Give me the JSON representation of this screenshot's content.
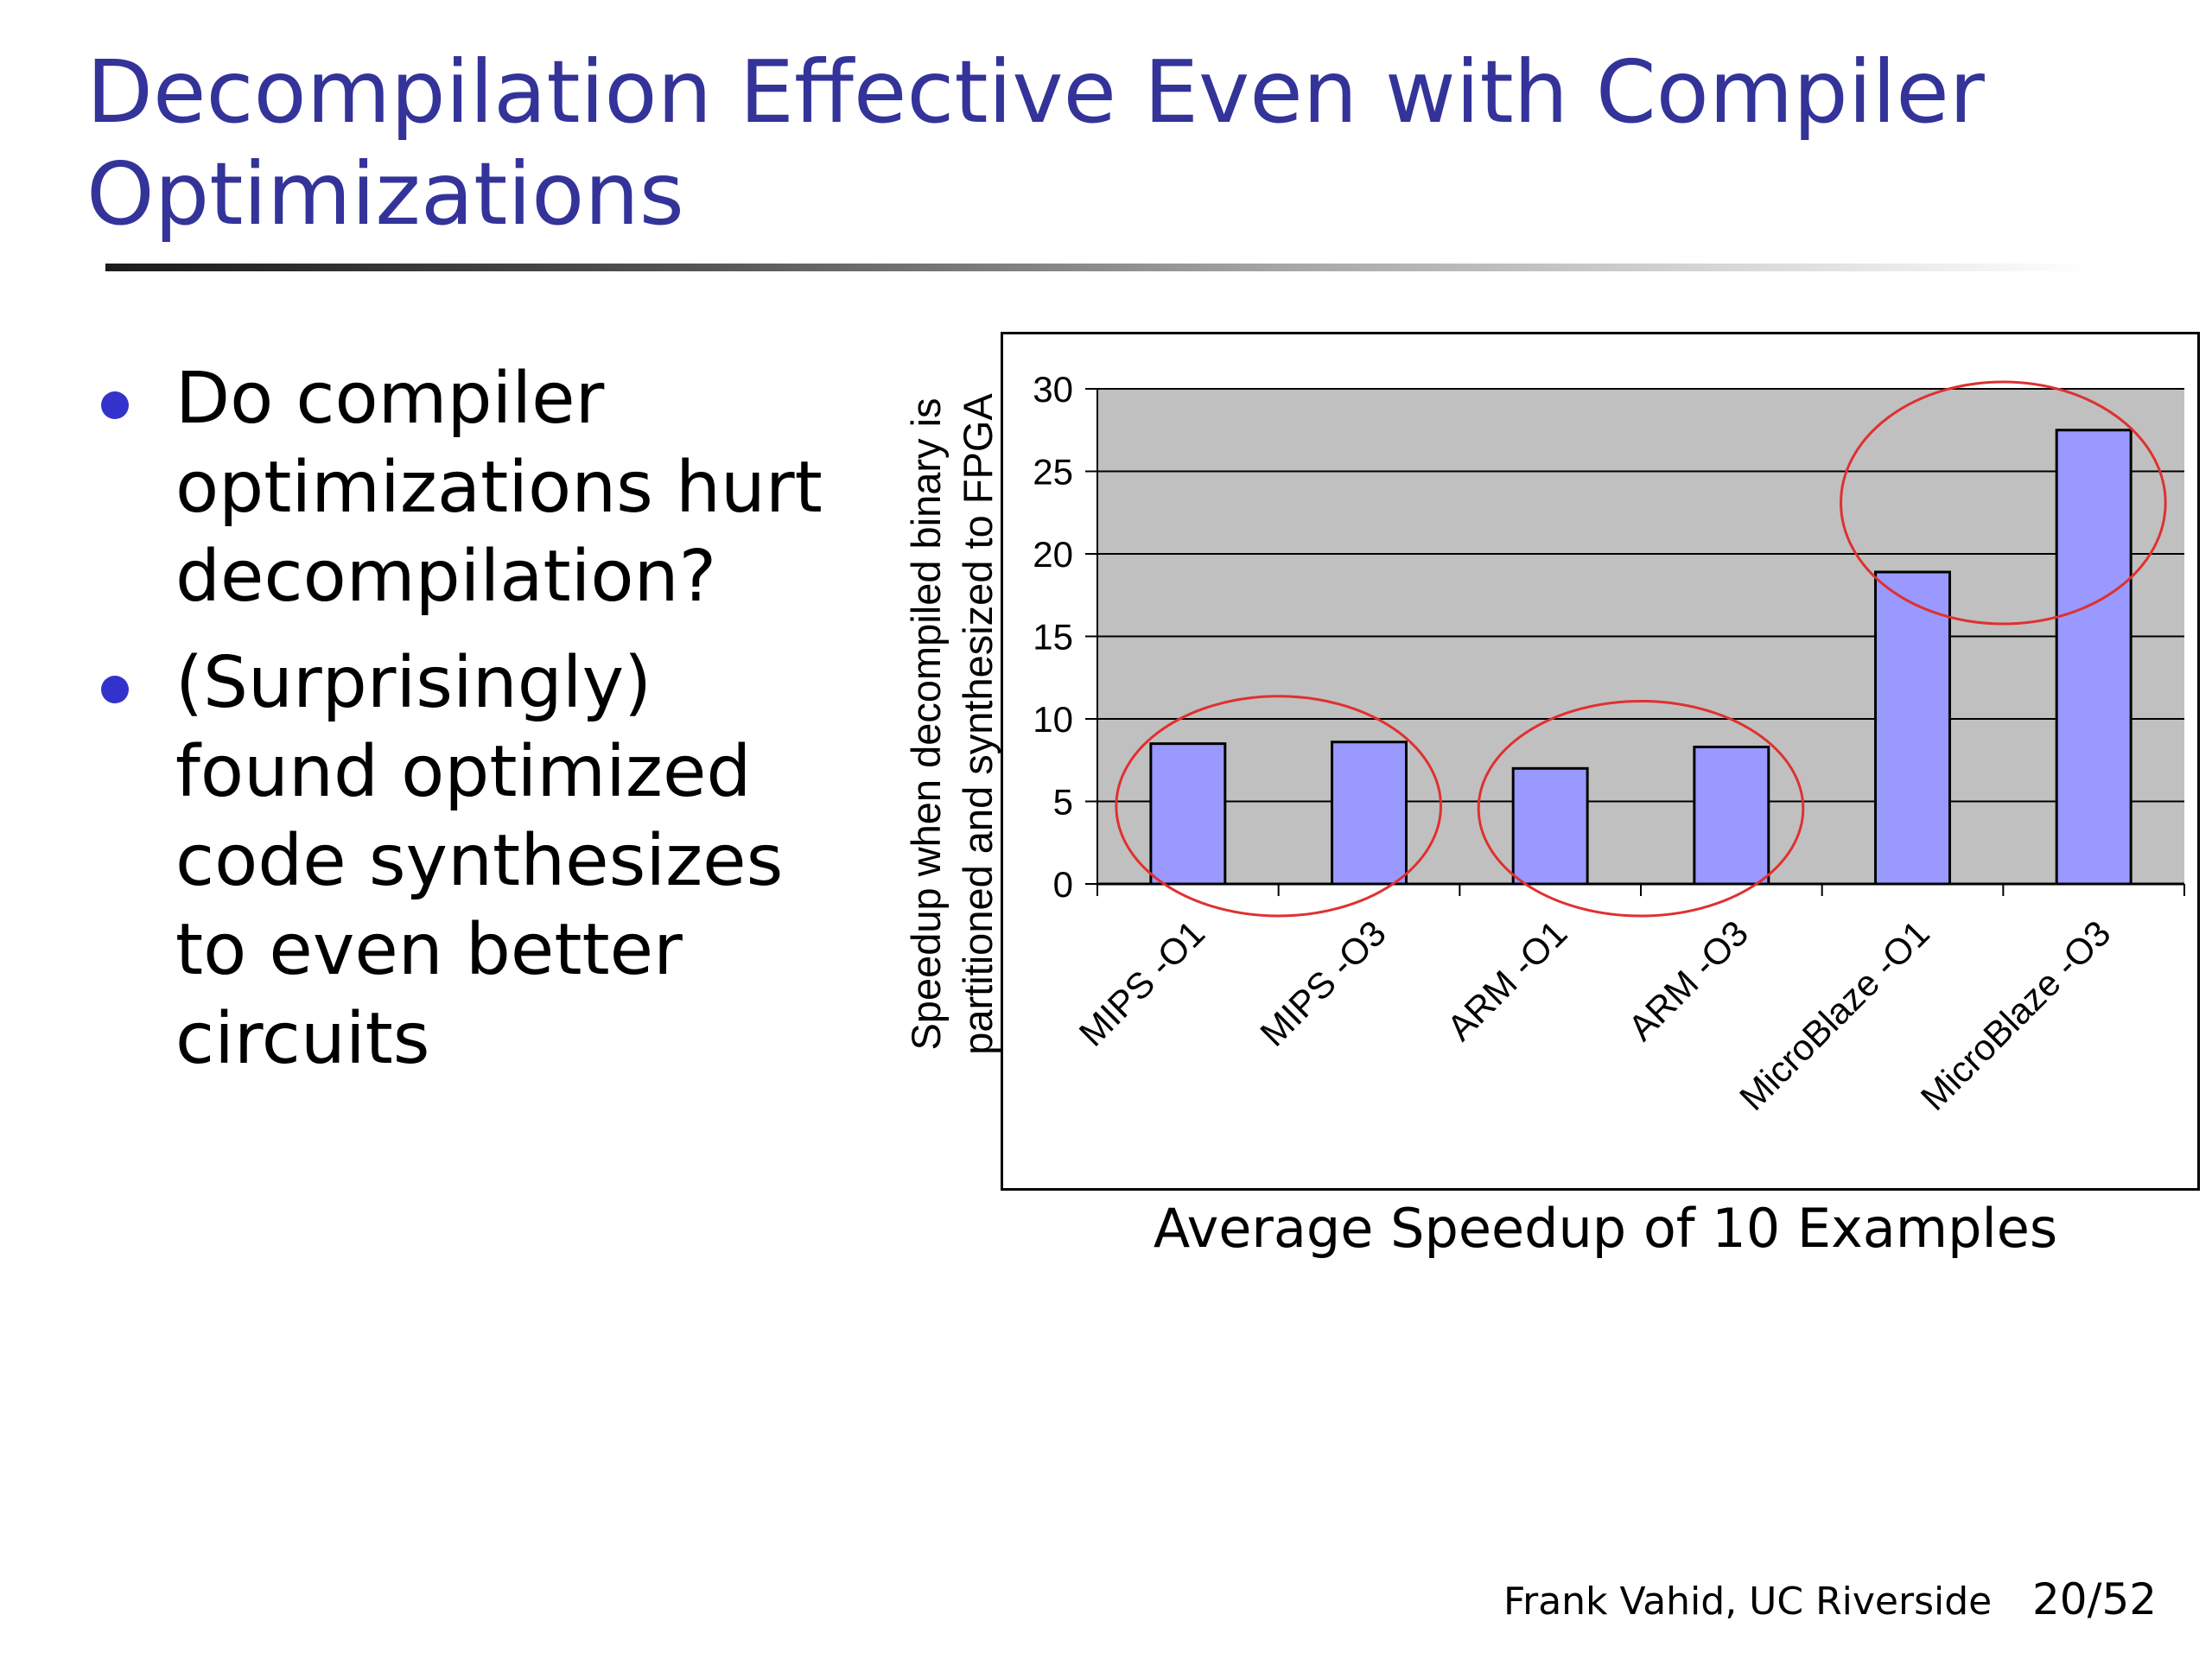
{
  "slide": {
    "title_line1": "Decompilation Effective Even with Compiler",
    "title_line2": "Optimizations",
    "bullets": [
      "Do compiler optimizations hurt decompilation?",
      "(Surprisingly) found optimized code synthesizes to even better circuits"
    ],
    "footer_author": "Frank Vahid, UC Riverside",
    "footer_page": "20/52"
  },
  "chart_data": {
    "type": "bar",
    "title": "",
    "caption": "Average Speedup of 10 Examples",
    "ylabel_line1": "Speedup when decompiled binary is",
    "ylabel_line2": "partitioned and synthesized to FPGA",
    "xlabel": "",
    "categories": [
      "MIPS -O1",
      "MIPS -O3",
      "ARM -O1",
      "ARM -O3",
      "MicroBlaze -O1",
      "MicroBlaze -O3"
    ],
    "values": [
      8.5,
      8.6,
      7.0,
      8.3,
      18.9,
      27.5
    ],
    "ylim": [
      0,
      30
    ],
    "yticks": [
      "0",
      "5",
      "10",
      "15",
      "20",
      "25",
      "30"
    ],
    "grid": true,
    "legend": "none",
    "colors": {
      "bar_fill": "#9999ff",
      "plot_background": "#c0c0c0",
      "annotation_circle": "#e03030"
    },
    "annotations": [
      {
        "type": "ellipse",
        "around": [
          "MIPS -O1",
          "MIPS -O3"
        ]
      },
      {
        "type": "ellipse",
        "around": [
          "ARM -O1",
          "ARM -O3"
        ]
      },
      {
        "type": "ellipse",
        "around": [
          "MicroBlaze -O1",
          "MicroBlaze -O3"
        ]
      }
    ]
  }
}
